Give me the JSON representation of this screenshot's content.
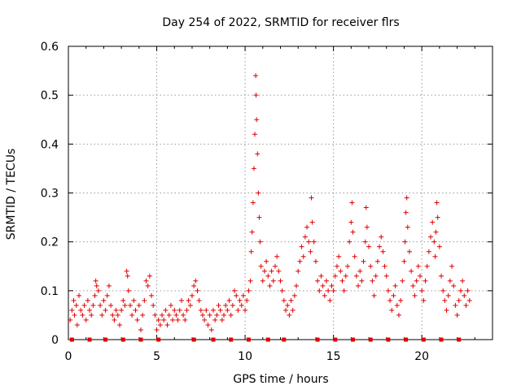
{
  "chart_data": {
    "type": "scatter",
    "title": "Day 254 of 2022, SRMTID for receiver flrs",
    "xlabel": "GPS time / hours",
    "ylabel": "SRMTID / TECUs",
    "xlim": [
      0,
      24
    ],
    "ylim": [
      0,
      0.6
    ],
    "x_ticks": [
      0,
      5,
      10,
      15,
      20
    ],
    "y_ticks": [
      0,
      0.1,
      0.2,
      0.3,
      0.4,
      0.5,
      0.6
    ],
    "x_tick_labels": [
      "0",
      "5",
      "10",
      "15",
      "20"
    ],
    "y_tick_labels": [
      "0",
      "0.1",
      "0.2",
      "0.3",
      "0.4",
      "0.5",
      "0.6"
    ],
    "grid": true,
    "marker": "+",
    "color": "#e00000",
    "series": [
      {
        "name": "SRMTID",
        "points": [
          [
            0.1,
            0.04
          ],
          [
            0.2,
            0.06
          ],
          [
            0.3,
            0.08
          ],
          [
            0.35,
            0.05
          ],
          [
            0.45,
            0.07
          ],
          [
            0.5,
            0.03
          ],
          [
            0.6,
            0.09
          ],
          [
            0.7,
            0.06
          ],
          [
            0.8,
            0.05
          ],
          [
            0.9,
            0.07
          ],
          [
            1.0,
            0.04
          ],
          [
            1.1,
            0.08
          ],
          [
            1.2,
            0.06
          ],
          [
            1.3,
            0.05
          ],
          [
            1.4,
            0.07
          ],
          [
            1.5,
            0.09
          ],
          [
            1.55,
            0.12
          ],
          [
            1.6,
            0.11
          ],
          [
            1.7,
            0.1
          ],
          [
            1.8,
            0.07
          ],
          [
            1.9,
            0.05
          ],
          [
            2.0,
            0.08
          ],
          [
            2.1,
            0.06
          ],
          [
            2.2,
            0.09
          ],
          [
            2.3,
            0.11
          ],
          [
            2.4,
            0.07
          ],
          [
            2.5,
            0.05
          ],
          [
            2.6,
            0.04
          ],
          [
            2.7,
            0.06
          ],
          [
            2.8,
            0.05
          ],
          [
            2.9,
            0.03
          ],
          [
            3.0,
            0.06
          ],
          [
            3.1,
            0.08
          ],
          [
            3.2,
            0.07
          ],
          [
            3.3,
            0.14
          ],
          [
            3.35,
            0.13
          ],
          [
            3.4,
            0.1
          ],
          [
            3.5,
            0.07
          ],
          [
            3.6,
            0.05
          ],
          [
            3.7,
            0.08
          ],
          [
            3.8,
            0.06
          ],
          [
            3.9,
            0.04
          ],
          [
            4.0,
            0.07
          ],
          [
            4.1,
            0.02
          ],
          [
            4.2,
            0.05
          ],
          [
            4.3,
            0.08
          ],
          [
            4.4,
            0.12
          ],
          [
            4.5,
            0.11
          ],
          [
            4.6,
            0.13
          ],
          [
            4.7,
            0.09
          ],
          [
            4.8,
            0.07
          ],
          [
            4.9,
            0.05
          ],
          [
            5.0,
            0.02
          ],
          [
            5.1,
            0.04
          ],
          [
            5.2,
            0.03
          ],
          [
            5.3,
            0.05
          ],
          [
            5.4,
            0.04
          ],
          [
            5.5,
            0.06
          ],
          [
            5.6,
            0.03
          ],
          [
            5.7,
            0.05
          ],
          [
            5.8,
            0.07
          ],
          [
            5.9,
            0.04
          ],
          [
            6.0,
            0.06
          ],
          [
            6.1,
            0.05
          ],
          [
            6.2,
            0.04
          ],
          [
            6.3,
            0.06
          ],
          [
            6.4,
            0.08
          ],
          [
            6.5,
            0.05
          ],
          [
            6.6,
            0.04
          ],
          [
            6.7,
            0.06
          ],
          [
            6.8,
            0.08
          ],
          [
            6.9,
            0.07
          ],
          [
            7.0,
            0.09
          ],
          [
            7.1,
            0.11
          ],
          [
            7.2,
            0.12
          ],
          [
            7.3,
            0.1
          ],
          [
            7.4,
            0.08
          ],
          [
            7.5,
            0.06
          ],
          [
            7.6,
            0.05
          ],
          [
            7.7,
            0.04
          ],
          [
            7.8,
            0.06
          ],
          [
            7.9,
            0.03
          ],
          [
            8.0,
            0.05
          ],
          [
            8.1,
            0.02
          ],
          [
            8.2,
            0.06
          ],
          [
            8.3,
            0.04
          ],
          [
            8.4,
            0.05
          ],
          [
            8.5,
            0.07
          ],
          [
            8.6,
            0.06
          ],
          [
            8.7,
            0.04
          ],
          [
            8.8,
            0.05
          ],
          [
            8.9,
            0.07
          ],
          [
            9.0,
            0.06
          ],
          [
            9.1,
            0.08
          ],
          [
            9.2,
            0.05
          ],
          [
            9.3,
            0.07
          ],
          [
            9.4,
            0.1
          ],
          [
            9.5,
            0.09
          ],
          [
            9.6,
            0.06
          ],
          [
            9.7,
            0.08
          ],
          [
            9.8,
            0.07
          ],
          [
            9.9,
            0.09
          ],
          [
            10.0,
            0.06
          ],
          [
            10.1,
            0.08
          ],
          [
            10.2,
            0.1
          ],
          [
            10.3,
            0.12
          ],
          [
            10.35,
            0.18
          ],
          [
            10.4,
            0.22
          ],
          [
            10.45,
            0.28
          ],
          [
            10.5,
            0.35
          ],
          [
            10.55,
            0.42
          ],
          [
            10.6,
            0.54
          ],
          [
            10.62,
            0.5
          ],
          [
            10.65,
            0.45
          ],
          [
            10.7,
            0.38
          ],
          [
            10.75,
            0.3
          ],
          [
            10.8,
            0.25
          ],
          [
            10.85,
            0.2
          ],
          [
            10.9,
            0.15
          ],
          [
            11.0,
            0.12
          ],
          [
            11.1,
            0.14
          ],
          [
            11.2,
            0.16
          ],
          [
            11.3,
            0.13
          ],
          [
            11.4,
            0.11
          ],
          [
            11.5,
            0.14
          ],
          [
            11.6,
            0.12
          ],
          [
            11.7,
            0.15
          ],
          [
            11.8,
            0.17
          ],
          [
            11.9,
            0.14
          ],
          [
            12.0,
            0.12
          ],
          [
            12.1,
            0.1
          ],
          [
            12.2,
            0.08
          ],
          [
            12.3,
            0.06
          ],
          [
            12.4,
            0.07
          ],
          [
            12.5,
            0.05
          ],
          [
            12.6,
            0.08
          ],
          [
            12.7,
            0.06
          ],
          [
            12.8,
            0.09
          ],
          [
            12.9,
            0.11
          ],
          [
            13.0,
            0.14
          ],
          [
            13.1,
            0.16
          ],
          [
            13.2,
            0.19
          ],
          [
            13.3,
            0.17
          ],
          [
            13.4,
            0.21
          ],
          [
            13.5,
            0.23
          ],
          [
            13.6,
            0.2
          ],
          [
            13.7,
            0.18
          ],
          [
            13.75,
            0.29
          ],
          [
            13.8,
            0.24
          ],
          [
            13.9,
            0.2
          ],
          [
            14.0,
            0.16
          ],
          [
            14.1,
            0.12
          ],
          [
            14.2,
            0.1
          ],
          [
            14.3,
            0.13
          ],
          [
            14.4,
            0.11
          ],
          [
            14.5,
            0.09
          ],
          [
            14.6,
            0.12
          ],
          [
            14.7,
            0.1
          ],
          [
            14.8,
            0.08
          ],
          [
            14.9,
            0.11
          ],
          [
            15.0,
            0.1
          ],
          [
            15.1,
            0.13
          ],
          [
            15.2,
            0.15
          ],
          [
            15.3,
            0.17
          ],
          [
            15.4,
            0.14
          ],
          [
            15.5,
            0.12
          ],
          [
            15.6,
            0.1
          ],
          [
            15.7,
            0.13
          ],
          [
            15.8,
            0.15
          ],
          [
            15.9,
            0.2
          ],
          [
            16.0,
            0.24
          ],
          [
            16.05,
            0.28
          ],
          [
            16.1,
            0.22
          ],
          [
            16.2,
            0.17
          ],
          [
            16.3,
            0.13
          ],
          [
            16.4,
            0.11
          ],
          [
            16.5,
            0.14
          ],
          [
            16.6,
            0.12
          ],
          [
            16.7,
            0.16
          ],
          [
            16.8,
            0.2
          ],
          [
            16.85,
            0.27
          ],
          [
            16.9,
            0.23
          ],
          [
            17.0,
            0.19
          ],
          [
            17.1,
            0.15
          ],
          [
            17.2,
            0.12
          ],
          [
            17.3,
            0.09
          ],
          [
            17.4,
            0.13
          ],
          [
            17.5,
            0.16
          ],
          [
            17.6,
            0.19
          ],
          [
            17.7,
            0.21
          ],
          [
            17.8,
            0.18
          ],
          [
            17.9,
            0.15
          ],
          [
            18.0,
            0.13
          ],
          [
            18.1,
            0.1
          ],
          [
            18.2,
            0.08
          ],
          [
            18.3,
            0.06
          ],
          [
            18.4,
            0.09
          ],
          [
            18.5,
            0.11
          ],
          [
            18.6,
            0.07
          ],
          [
            18.7,
            0.05
          ],
          [
            18.8,
            0.08
          ],
          [
            18.9,
            0.12
          ],
          [
            19.0,
            0.16
          ],
          [
            19.05,
            0.2
          ],
          [
            19.1,
            0.26
          ],
          [
            19.15,
            0.29
          ],
          [
            19.2,
            0.23
          ],
          [
            19.3,
            0.18
          ],
          [
            19.4,
            0.14
          ],
          [
            19.5,
            0.11
          ],
          [
            19.6,
            0.09
          ],
          [
            19.7,
            0.12
          ],
          [
            19.8,
            0.15
          ],
          [
            19.9,
            0.13
          ],
          [
            20.0,
            0.1
          ],
          [
            20.1,
            0.08
          ],
          [
            20.2,
            0.12
          ],
          [
            20.3,
            0.15
          ],
          [
            20.4,
            0.18
          ],
          [
            20.5,
            0.21
          ],
          [
            20.6,
            0.24
          ],
          [
            20.7,
            0.2
          ],
          [
            20.75,
            0.17
          ],
          [
            20.8,
            0.22
          ],
          [
            20.85,
            0.28
          ],
          [
            20.9,
            0.25
          ],
          [
            21.0,
            0.19
          ],
          [
            21.1,
            0.13
          ],
          [
            21.2,
            0.1
          ],
          [
            21.3,
            0.08
          ],
          [
            21.4,
            0.06
          ],
          [
            21.5,
            0.09
          ],
          [
            21.6,
            0.12
          ],
          [
            21.7,
            0.15
          ],
          [
            21.8,
            0.11
          ],
          [
            21.9,
            0.07
          ],
          [
            22.0,
            0.05
          ],
          [
            22.1,
            0.08
          ],
          [
            22.2,
            0.1
          ],
          [
            22.3,
            0.12
          ],
          [
            22.4,
            0.09
          ],
          [
            22.5,
            0.07
          ],
          [
            22.6,
            0.1
          ],
          [
            22.7,
            0.08
          ]
        ]
      }
    ],
    "baseline_markers_x": [
      0.2,
      1.2,
      2.1,
      3.1,
      4.1,
      5.1,
      7.1,
      8.2,
      9.2,
      10.2,
      11.3,
      12.2,
      14.1,
      15.1,
      16.1,
      17.1,
      18.1,
      19.1,
      20.1,
      21.1,
      22.1
    ]
  }
}
